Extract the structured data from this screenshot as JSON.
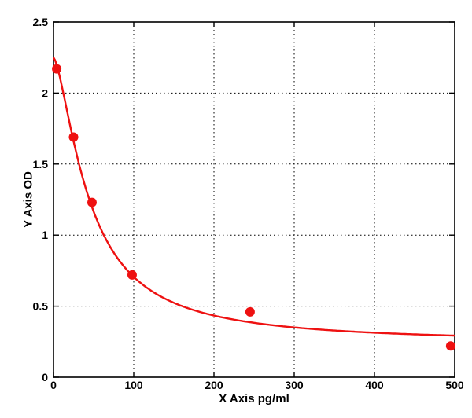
{
  "chart_data": {
    "type": "scatter",
    "title": "",
    "xlabel": "X Axis pg/ml",
    "ylabel": "Y Axis OD",
    "xlim": [
      0,
      500
    ],
    "ylim": [
      0,
      2.5
    ],
    "xticks": [
      0,
      100,
      200,
      300,
      400,
      500
    ],
    "yticks": [
      0,
      0.5,
      1,
      1.5,
      2,
      2.5
    ],
    "grid": true,
    "legend": "none",
    "points": [
      {
        "x": 4,
        "y": 2.17
      },
      {
        "x": 25,
        "y": 1.69
      },
      {
        "x": 48,
        "y": 1.23
      },
      {
        "x": 98,
        "y": 0.72
      },
      {
        "x": 245,
        "y": 0.46
      },
      {
        "x": 495,
        "y": 0.22
      }
    ],
    "fit_curve": {
      "model": "4PL",
      "a": 2.25,
      "b": 1.5,
      "c": 45,
      "d": 0.24
    },
    "marker_color": "#ee1111",
    "line_color": "#ee1111",
    "grid_color": "#000000",
    "axis_color": "#000000",
    "background": "#ffffff"
  }
}
